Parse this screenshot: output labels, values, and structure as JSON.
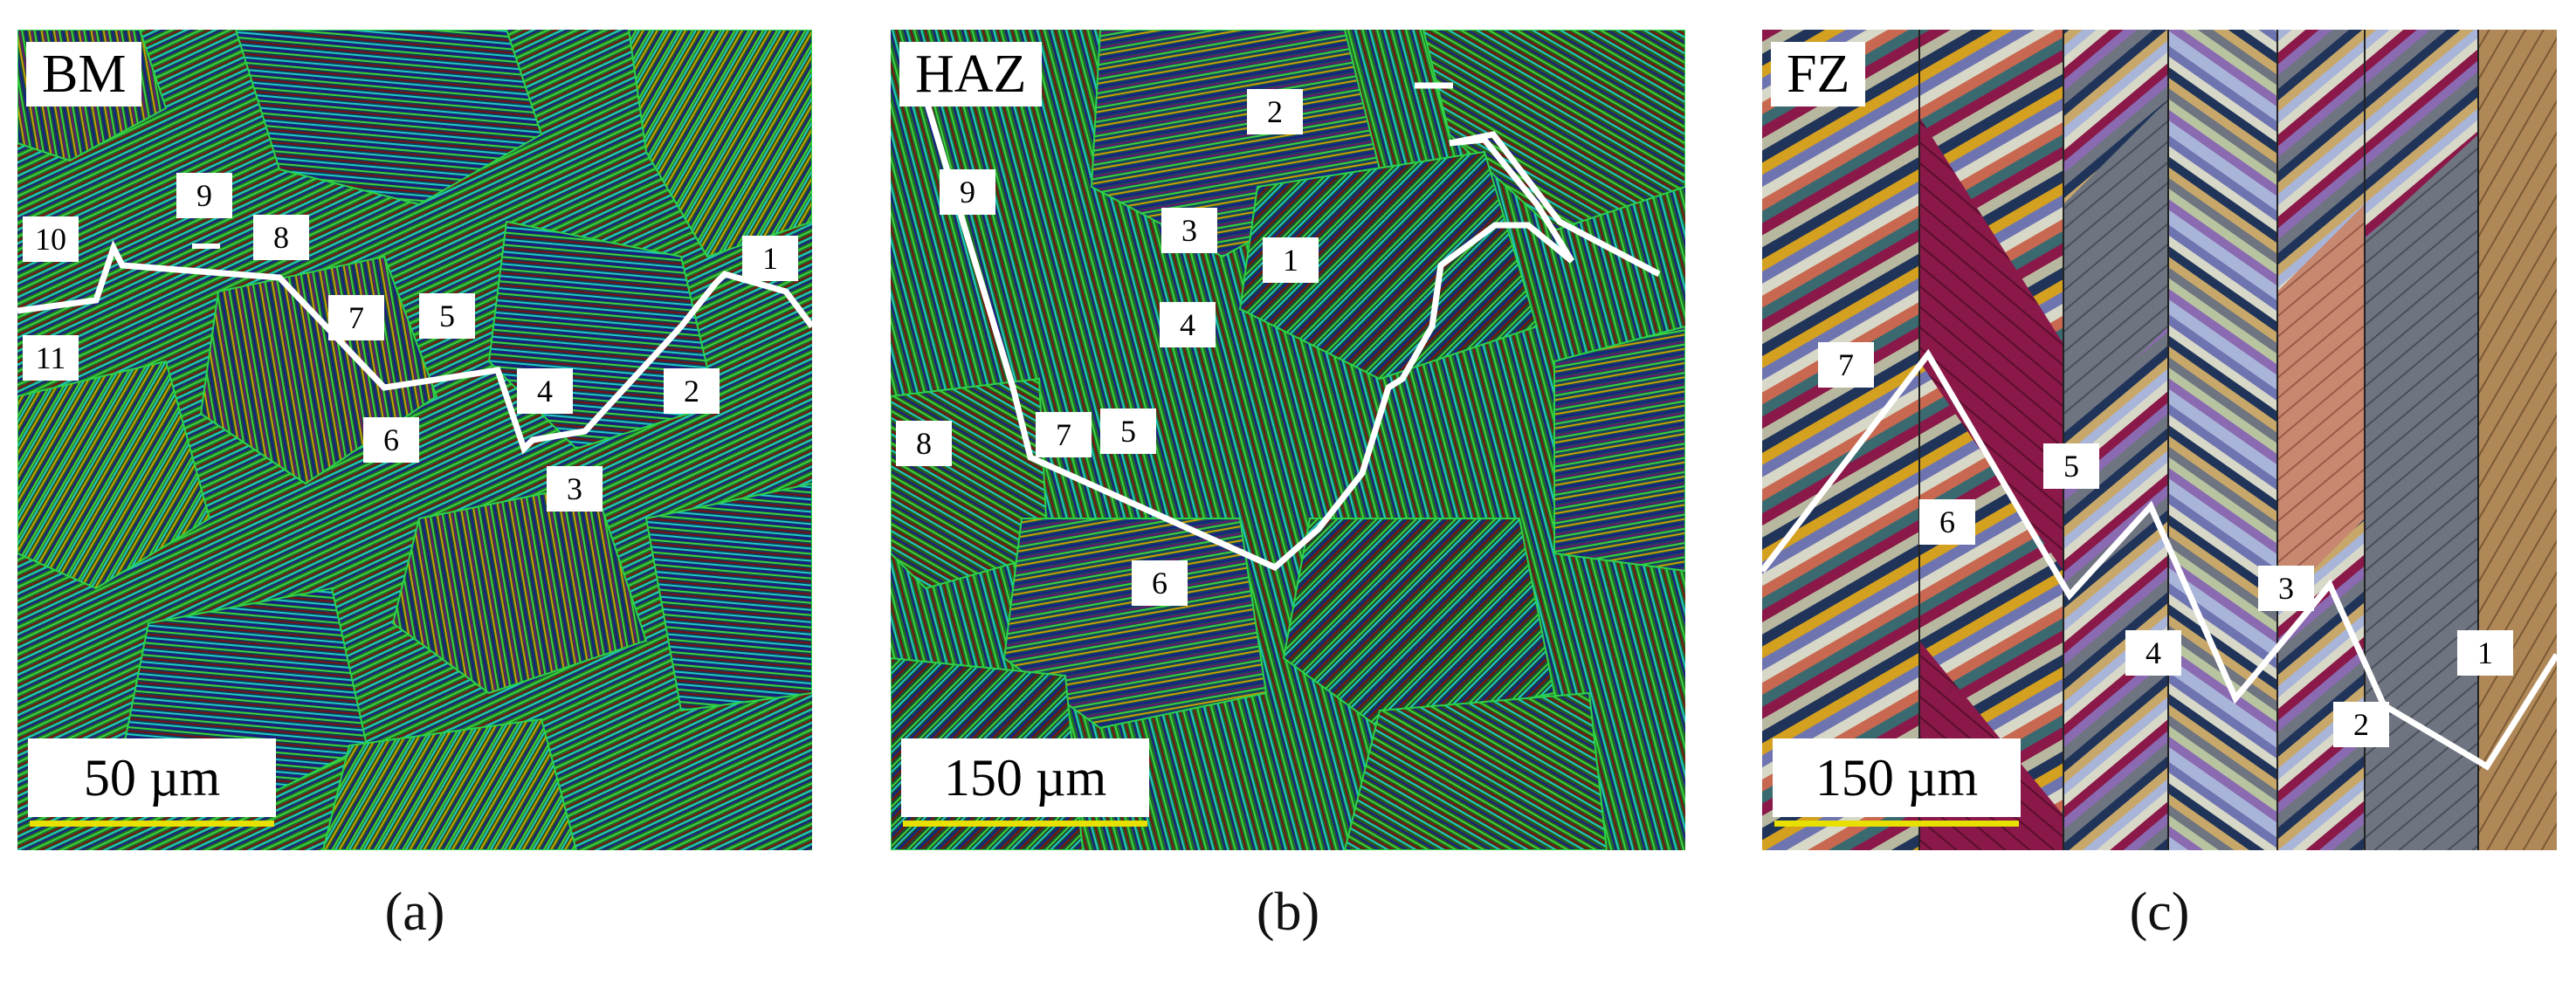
{
  "panels": [
    {
      "id": "a",
      "zone": "BM",
      "scale_bar": "50 µm",
      "caption": "(a)",
      "map_style": "striped grains",
      "labels": [
        "1",
        "2",
        "3",
        "4",
        "5",
        "6",
        "7",
        "8",
        "9",
        "10",
        "11"
      ]
    },
    {
      "id": "b",
      "zone": "HAZ",
      "scale_bar": "150 µm",
      "caption": "(b)",
      "map_style": "striped grains",
      "labels": [
        "1",
        "2",
        "3",
        "4",
        "5",
        "6",
        "7",
        "8",
        "9"
      ]
    },
    {
      "id": "c",
      "zone": "FZ",
      "scale_bar": "150 µm",
      "caption": "(c)",
      "map_style": "columnar chevron bands",
      "labels": [
        "1",
        "2",
        "3",
        "4",
        "5",
        "6",
        "7"
      ]
    }
  ],
  "colors": {
    "grain_base": "#1e7a2c",
    "stripes": [
      "#1a1a8c",
      "#3cd23c",
      "#c8a000",
      "#20c8c8",
      "#7a1010",
      "#1b5e20"
    ],
    "path_line": "#ffffff",
    "scale_bar": "#e7e000",
    "fz_bands": [
      "#8a1848",
      "#6e7480",
      "#a8b4d8",
      "#c88870",
      "#b08858",
      "#20345a"
    ]
  }
}
